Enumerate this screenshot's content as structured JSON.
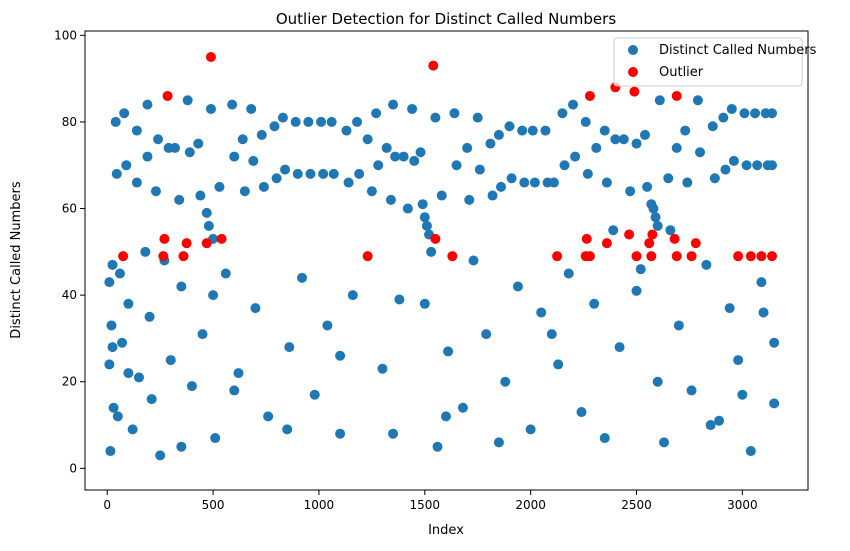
{
  "chart_data": {
    "type": "scatter",
    "title": "Outlier Detection for Distinct Called Numbers",
    "xlabel": "Index",
    "ylabel": "Distinct Called Numbers",
    "xlim": [
      -105,
      3310
    ],
    "ylim": [
      -5,
      101
    ],
    "xticks": [
      0,
      500,
      1000,
      1500,
      2000,
      2500,
      3000
    ],
    "yticks": [
      0,
      20,
      40,
      60,
      80,
      100
    ],
    "grid": false,
    "legend_position": "top-right",
    "series": [
      {
        "name": "Distinct Called Numbers",
        "color": "#1f77b4",
        "points": [
          [
            10,
            24
          ],
          [
            10,
            43
          ],
          [
            15,
            4
          ],
          [
            20,
            33
          ],
          [
            25,
            47
          ],
          [
            25,
            28
          ],
          [
            30,
            14
          ],
          [
            40,
            80
          ],
          [
            45,
            68
          ],
          [
            50,
            12
          ],
          [
            60,
            45
          ],
          [
            70,
            29
          ],
          [
            80,
            82
          ],
          [
            90,
            70
          ],
          [
            100,
            38
          ],
          [
            120,
            9
          ],
          [
            140,
            78
          ],
          [
            140,
            66
          ],
          [
            150,
            21
          ],
          [
            180,
            50
          ],
          [
            190,
            84
          ],
          [
            190,
            72
          ],
          [
            200,
            35
          ],
          [
            210,
            16
          ],
          [
            230,
            64
          ],
          [
            240,
            76
          ],
          [
            250,
            3
          ],
          [
            270,
            48
          ],
          [
            290,
            74
          ],
          [
            300,
            25
          ],
          [
            320,
            74
          ],
          [
            340,
            62
          ],
          [
            350,
            42
          ],
          [
            380,
            85
          ],
          [
            390,
            73
          ],
          [
            400,
            19
          ],
          [
            430,
            75
          ],
          [
            440,
            63
          ],
          [
            450,
            31
          ],
          [
            470,
            59
          ],
          [
            480,
            56
          ],
          [
            490,
            83
          ],
          [
            500,
            53
          ],
          [
            510,
            7
          ],
          [
            530,
            65
          ],
          [
            560,
            45
          ],
          [
            590,
            84
          ],
          [
            600,
            72
          ],
          [
            620,
            22
          ],
          [
            640,
            76
          ],
          [
            650,
            64
          ],
          [
            680,
            83
          ],
          [
            690,
            71
          ],
          [
            700,
            37
          ],
          [
            730,
            77
          ],
          [
            740,
            65
          ],
          [
            760,
            12
          ],
          [
            790,
            79
          ],
          [
            800,
            67
          ],
          [
            830,
            81
          ],
          [
            840,
            69
          ],
          [
            860,
            28
          ],
          [
            890,
            80
          ],
          [
            900,
            68
          ],
          [
            920,
            44
          ],
          [
            950,
            80
          ],
          [
            960,
            68
          ],
          [
            980,
            17
          ],
          [
            1010,
            80
          ],
          [
            1020,
            68
          ],
          [
            1040,
            33
          ],
          [
            1060,
            80
          ],
          [
            1070,
            68
          ],
          [
            1100,
            8
          ],
          [
            1130,
            78
          ],
          [
            1140,
            66
          ],
          [
            1160,
            40
          ],
          [
            1180,
            80
          ],
          [
            1190,
            68
          ],
          [
            1230,
            76
          ],
          [
            1250,
            64
          ],
          [
            1270,
            82
          ],
          [
            1280,
            70
          ],
          [
            1300,
            23
          ],
          [
            1320,
            74
          ],
          [
            1340,
            62
          ],
          [
            1350,
            84
          ],
          [
            1360,
            72
          ],
          [
            1380,
            39
          ],
          [
            1400,
            72
          ],
          [
            1420,
            60
          ],
          [
            1440,
            83
          ],
          [
            1450,
            71
          ],
          [
            1480,
            73
          ],
          [
            1490,
            61
          ],
          [
            1500,
            58
          ],
          [
            1510,
            56
          ],
          [
            1520,
            54
          ],
          [
            1530,
            50
          ],
          [
            1550,
            81
          ],
          [
            1560,
            5
          ],
          [
            1580,
            63
          ],
          [
            1610,
            27
          ],
          [
            1640,
            82
          ],
          [
            1650,
            70
          ],
          [
            1680,
            14
          ],
          [
            1700,
            74
          ],
          [
            1710,
            62
          ],
          [
            1730,
            48
          ],
          [
            1750,
            81
          ],
          [
            1760,
            69
          ],
          [
            1790,
            31
          ],
          [
            1810,
            75
          ],
          [
            1820,
            63
          ],
          [
            1850,
            77
          ],
          [
            1860,
            65
          ],
          [
            1880,
            20
          ],
          [
            1900,
            79
          ],
          [
            1910,
            67
          ],
          [
            1940,
            42
          ],
          [
            1960,
            78
          ],
          [
            1970,
            66
          ],
          [
            2000,
            9
          ],
          [
            2010,
            78
          ],
          [
            2020,
            66
          ],
          [
            2050,
            36
          ],
          [
            2070,
            78
          ],
          [
            2080,
            66
          ],
          [
            2110,
            66
          ],
          [
            2130,
            24
          ],
          [
            2150,
            82
          ],
          [
            2160,
            70
          ],
          [
            2180,
            45
          ],
          [
            2200,
            84
          ],
          [
            2210,
            72
          ],
          [
            2240,
            13
          ],
          [
            2260,
            80
          ],
          [
            2270,
            68
          ],
          [
            2300,
            38
          ],
          [
            2310,
            74
          ],
          [
            2350,
            78
          ],
          [
            2360,
            66
          ],
          [
            2390,
            55
          ],
          [
            2400,
            76
          ],
          [
            2420,
            28
          ],
          [
            2440,
            76
          ],
          [
            2470,
            64
          ],
          [
            2500,
            75
          ],
          [
            2520,
            46
          ],
          [
            2540,
            77
          ],
          [
            2550,
            65
          ],
          [
            2570,
            61
          ],
          [
            2580,
            60
          ],
          [
            2590,
            58
          ],
          [
            2600,
            56
          ],
          [
            2610,
            85
          ],
          [
            2630,
            6
          ],
          [
            2650,
            67
          ],
          [
            2660,
            55
          ],
          [
            2690,
            74
          ],
          [
            2700,
            33
          ],
          [
            2730,
            78
          ],
          [
            2740,
            66
          ],
          [
            2760,
            18
          ],
          [
            2790,
            85
          ],
          [
            2800,
            73
          ],
          [
            2830,
            47
          ],
          [
            2860,
            79
          ],
          [
            2870,
            67
          ],
          [
            2890,
            11
          ],
          [
            2910,
            81
          ],
          [
            2920,
            69
          ],
          [
            2940,
            37
          ],
          [
            2950,
            83
          ],
          [
            2960,
            71
          ],
          [
            2980,
            25
          ],
          [
            3010,
            82
          ],
          [
            3020,
            70
          ],
          [
            3040,
            4
          ],
          [
            3060,
            82
          ],
          [
            3070,
            70
          ],
          [
            3090,
            43
          ],
          [
            3110,
            82
          ],
          [
            3120,
            70
          ],
          [
            3140,
            82
          ],
          [
            3140,
            70
          ],
          [
            3150,
            29
          ],
          [
            3150,
            15
          ],
          [
            100,
            22
          ],
          [
            600,
            18
          ],
          [
            1100,
            26
          ],
          [
            1600,
            12
          ],
          [
            2100,
            31
          ],
          [
            2600,
            20
          ],
          [
            3000,
            17
          ],
          [
            350,
            5
          ],
          [
            850,
            9
          ],
          [
            1350,
            8
          ],
          [
            1850,
            6
          ],
          [
            2350,
            7
          ],
          [
            2850,
            10
          ],
          [
            500,
            40
          ],
          [
            1500,
            38
          ],
          [
            2500,
            41
          ],
          [
            3100,
            36
          ]
        ]
      },
      {
        "name": "Outlier",
        "color": "#ff0000",
        "points": [
          [
            75,
            49
          ],
          [
            265,
            49
          ],
          [
            270,
            53
          ],
          [
            285,
            86
          ],
          [
            360,
            49
          ],
          [
            375,
            52
          ],
          [
            470,
            52
          ],
          [
            490,
            95
          ],
          [
            540,
            53
          ],
          [
            1230,
            49
          ],
          [
            1540,
            93
          ],
          [
            1550,
            53
          ],
          [
            1630,
            49
          ],
          [
            2125,
            49
          ],
          [
            2260,
            49
          ],
          [
            2265,
            53
          ],
          [
            2280,
            86
          ],
          [
            2280,
            49
          ],
          [
            2360,
            52
          ],
          [
            2400,
            88
          ],
          [
            2465,
            54
          ],
          [
            2490,
            87
          ],
          [
            2500,
            49
          ],
          [
            2560,
            52
          ],
          [
            2570,
            49
          ],
          [
            2575,
            54
          ],
          [
            2680,
            53
          ],
          [
            2690,
            86
          ],
          [
            2690,
            49
          ],
          [
            2760,
            49
          ],
          [
            2780,
            52
          ],
          [
            2980,
            49
          ],
          [
            3040,
            49
          ],
          [
            3090,
            49
          ],
          [
            3140,
            49
          ]
        ]
      }
    ]
  }
}
